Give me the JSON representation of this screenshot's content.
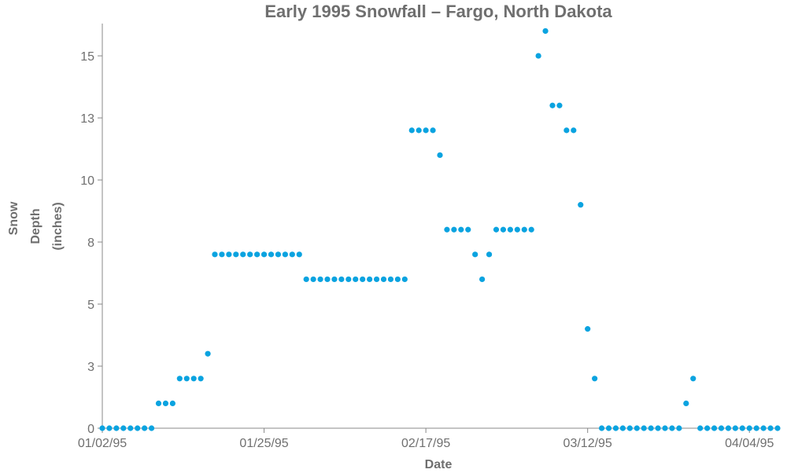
{
  "chart_data": {
    "type": "scatter",
    "title": "Early 1995 Snowfall – Fargo, North Dakota",
    "xlabel": "Date",
    "ylabel_lines": [
      "Snow",
      "Depth",
      "(inches)"
    ],
    "x_type": "date",
    "xlim": [
      "1995-01-02",
      "1995-04-08"
    ],
    "ylim": [
      0,
      16.3
    ],
    "x_ticks": [
      {
        "date": "1995-01-02",
        "label": "01/02/95"
      },
      {
        "date": "1995-01-25",
        "label": "01/25/95"
      },
      {
        "date": "1995-02-17",
        "label": "02/17/95"
      },
      {
        "date": "1995-03-12",
        "label": "03/12/95"
      },
      {
        "date": "1995-04-04",
        "label": "04/04/95"
      }
    ],
    "y_ticks": [
      {
        "value": 0,
        "label": "0"
      },
      {
        "value": 2.5,
        "label": "3"
      },
      {
        "value": 5,
        "label": "5"
      },
      {
        "value": 7.5,
        "label": "8"
      },
      {
        "value": 10,
        "label": "10"
      },
      {
        "value": 12.5,
        "label": "13"
      },
      {
        "value": 15,
        "label": "15"
      }
    ],
    "grid": false,
    "point_color": "#0aa3e0",
    "series": [
      {
        "points": [
          {
            "x": "1995-01-02",
            "y": 0
          },
          {
            "x": "1995-01-03",
            "y": 0
          },
          {
            "x": "1995-01-04",
            "y": 0
          },
          {
            "x": "1995-01-05",
            "y": 0
          },
          {
            "x": "1995-01-06",
            "y": 0
          },
          {
            "x": "1995-01-07",
            "y": 0
          },
          {
            "x": "1995-01-08",
            "y": 0
          },
          {
            "x": "1995-01-09",
            "y": 0
          },
          {
            "x": "1995-01-10",
            "y": 1
          },
          {
            "x": "1995-01-11",
            "y": 1
          },
          {
            "x": "1995-01-12",
            "y": 1
          },
          {
            "x": "1995-01-13",
            "y": 2
          },
          {
            "x": "1995-01-14",
            "y": 2
          },
          {
            "x": "1995-01-15",
            "y": 2
          },
          {
            "x": "1995-01-16",
            "y": 2
          },
          {
            "x": "1995-01-17",
            "y": 3
          },
          {
            "x": "1995-01-18",
            "y": 7
          },
          {
            "x": "1995-01-19",
            "y": 7
          },
          {
            "x": "1995-01-20",
            "y": 7
          },
          {
            "x": "1995-01-21",
            "y": 7
          },
          {
            "x": "1995-01-22",
            "y": 7
          },
          {
            "x": "1995-01-23",
            "y": 7
          },
          {
            "x": "1995-01-24",
            "y": 7
          },
          {
            "x": "1995-01-25",
            "y": 7
          },
          {
            "x": "1995-01-26",
            "y": 7
          },
          {
            "x": "1995-01-27",
            "y": 7
          },
          {
            "x": "1995-01-28",
            "y": 7
          },
          {
            "x": "1995-01-29",
            "y": 7
          },
          {
            "x": "1995-01-30",
            "y": 7
          },
          {
            "x": "1995-01-31",
            "y": 6
          },
          {
            "x": "1995-02-01",
            "y": 6
          },
          {
            "x": "1995-02-02",
            "y": 6
          },
          {
            "x": "1995-02-03",
            "y": 6
          },
          {
            "x": "1995-02-04",
            "y": 6
          },
          {
            "x": "1995-02-05",
            "y": 6
          },
          {
            "x": "1995-02-06",
            "y": 6
          },
          {
            "x": "1995-02-07",
            "y": 6
          },
          {
            "x": "1995-02-08",
            "y": 6
          },
          {
            "x": "1995-02-09",
            "y": 6
          },
          {
            "x": "1995-02-10",
            "y": 6
          },
          {
            "x": "1995-02-11",
            "y": 6
          },
          {
            "x": "1995-02-12",
            "y": 6
          },
          {
            "x": "1995-02-13",
            "y": 6
          },
          {
            "x": "1995-02-14",
            "y": 6
          },
          {
            "x": "1995-02-15",
            "y": 12
          },
          {
            "x": "1995-02-16",
            "y": 12
          },
          {
            "x": "1995-02-17",
            "y": 12
          },
          {
            "x": "1995-02-18",
            "y": 12
          },
          {
            "x": "1995-02-19",
            "y": 11
          },
          {
            "x": "1995-02-20",
            "y": 8
          },
          {
            "x": "1995-02-21",
            "y": 8
          },
          {
            "x": "1995-02-22",
            "y": 8
          },
          {
            "x": "1995-02-23",
            "y": 8
          },
          {
            "x": "1995-02-24",
            "y": 7
          },
          {
            "x": "1995-02-25",
            "y": 6
          },
          {
            "x": "1995-02-26",
            "y": 7
          },
          {
            "x": "1995-02-27",
            "y": 8
          },
          {
            "x": "1995-02-28",
            "y": 8
          },
          {
            "x": "1995-03-01",
            "y": 8
          },
          {
            "x": "1995-03-02",
            "y": 8
          },
          {
            "x": "1995-03-03",
            "y": 8
          },
          {
            "x": "1995-03-04",
            "y": 8
          },
          {
            "x": "1995-03-05",
            "y": 15
          },
          {
            "x": "1995-03-06",
            "y": 16
          },
          {
            "x": "1995-03-07",
            "y": 13
          },
          {
            "x": "1995-03-08",
            "y": 13
          },
          {
            "x": "1995-03-09",
            "y": 12
          },
          {
            "x": "1995-03-10",
            "y": 12
          },
          {
            "x": "1995-03-11",
            "y": 9
          },
          {
            "x": "1995-03-12",
            "y": 4
          },
          {
            "x": "1995-03-13",
            "y": 2
          },
          {
            "x": "1995-03-14",
            "y": 0
          },
          {
            "x": "1995-03-15",
            "y": 0
          },
          {
            "x": "1995-03-16",
            "y": 0
          },
          {
            "x": "1995-03-17",
            "y": 0
          },
          {
            "x": "1995-03-18",
            "y": 0
          },
          {
            "x": "1995-03-19",
            "y": 0
          },
          {
            "x": "1995-03-20",
            "y": 0
          },
          {
            "x": "1995-03-21",
            "y": 0
          },
          {
            "x": "1995-03-22",
            "y": 0
          },
          {
            "x": "1995-03-23",
            "y": 0
          },
          {
            "x": "1995-03-24",
            "y": 0
          },
          {
            "x": "1995-03-25",
            "y": 0
          },
          {
            "x": "1995-03-26",
            "y": 1
          },
          {
            "x": "1995-03-27",
            "y": 2
          },
          {
            "x": "1995-03-28",
            "y": 0
          },
          {
            "x": "1995-03-29",
            "y": 0
          },
          {
            "x": "1995-03-30",
            "y": 0
          },
          {
            "x": "1995-03-31",
            "y": 0
          },
          {
            "x": "1995-04-01",
            "y": 0
          },
          {
            "x": "1995-04-02",
            "y": 0
          },
          {
            "x": "1995-04-03",
            "y": 0
          },
          {
            "x": "1995-04-04",
            "y": 0
          },
          {
            "x": "1995-04-05",
            "y": 0
          },
          {
            "x": "1995-04-06",
            "y": 0
          },
          {
            "x": "1995-04-07",
            "y": 0
          },
          {
            "x": "1995-04-08",
            "y": 0
          }
        ]
      }
    ]
  }
}
